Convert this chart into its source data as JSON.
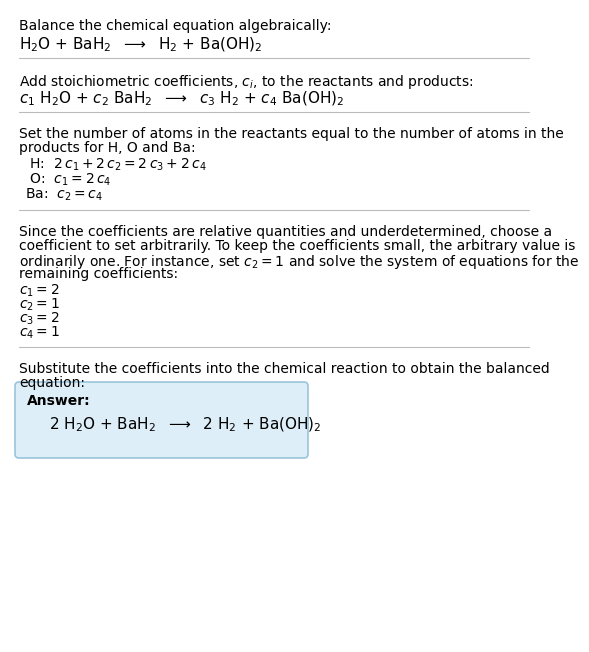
{
  "s1_line1": "Balance the chemical equation algebraically:",
  "s1_line2": "H$_2$O + BaH$_2$  $\\longrightarrow$  H$_2$ + Ba(OH)$_2$",
  "s2_line1": "Add stoichiometric coefficients, $c_i$, to the reactants and products:",
  "s2_line2": "$c_1$ H$_2$O + $c_2$ BaH$_2$  $\\longrightarrow$  $c_3$ H$_2$ + $c_4$ Ba(OH)$_2$",
  "s3_line1": "Set the number of atoms in the reactants equal to the number of atoms in the",
  "s3_line2": "products for H, O and Ba:",
  "s3_eqs": [
    " H:  $2\\,c_1 + 2\\,c_2 = 2\\,c_3 + 2\\,c_4$",
    " O:  $c_1 = 2\\,c_4$",
    "Ba:  $c_2 = c_4$"
  ],
  "s4_line1": "Since the coefficients are relative quantities and underdetermined, choose a",
  "s4_line2": "coefficient to set arbitrarily. To keep the coefficients small, the arbitrary value is",
  "s4_line3": "ordinarily one. For instance, set $c_2 = 1$ and solve the system of equations for the",
  "s4_line4": "remaining coefficients:",
  "s4_sols": [
    "$c_1 = 2$",
    "$c_2 = 1$",
    "$c_3 = 2$",
    "$c_4 = 1$"
  ],
  "s5_line1": "Substitute the coefficients into the chemical reaction to obtain the balanced",
  "s5_line2": "equation:",
  "answer_label": "Answer:",
  "answer_eq": "2 H$_2$O + BaH$_2$  $\\longrightarrow$  2 H$_2$ + Ba(OH)$_2$",
  "bg": "#ffffff",
  "text_color": "#000000",
  "sep_color": "#bbbbbb",
  "box_bg": "#deeef8",
  "box_border": "#99c4dc",
  "fs": 10.0,
  "fs_eq": 11.0
}
